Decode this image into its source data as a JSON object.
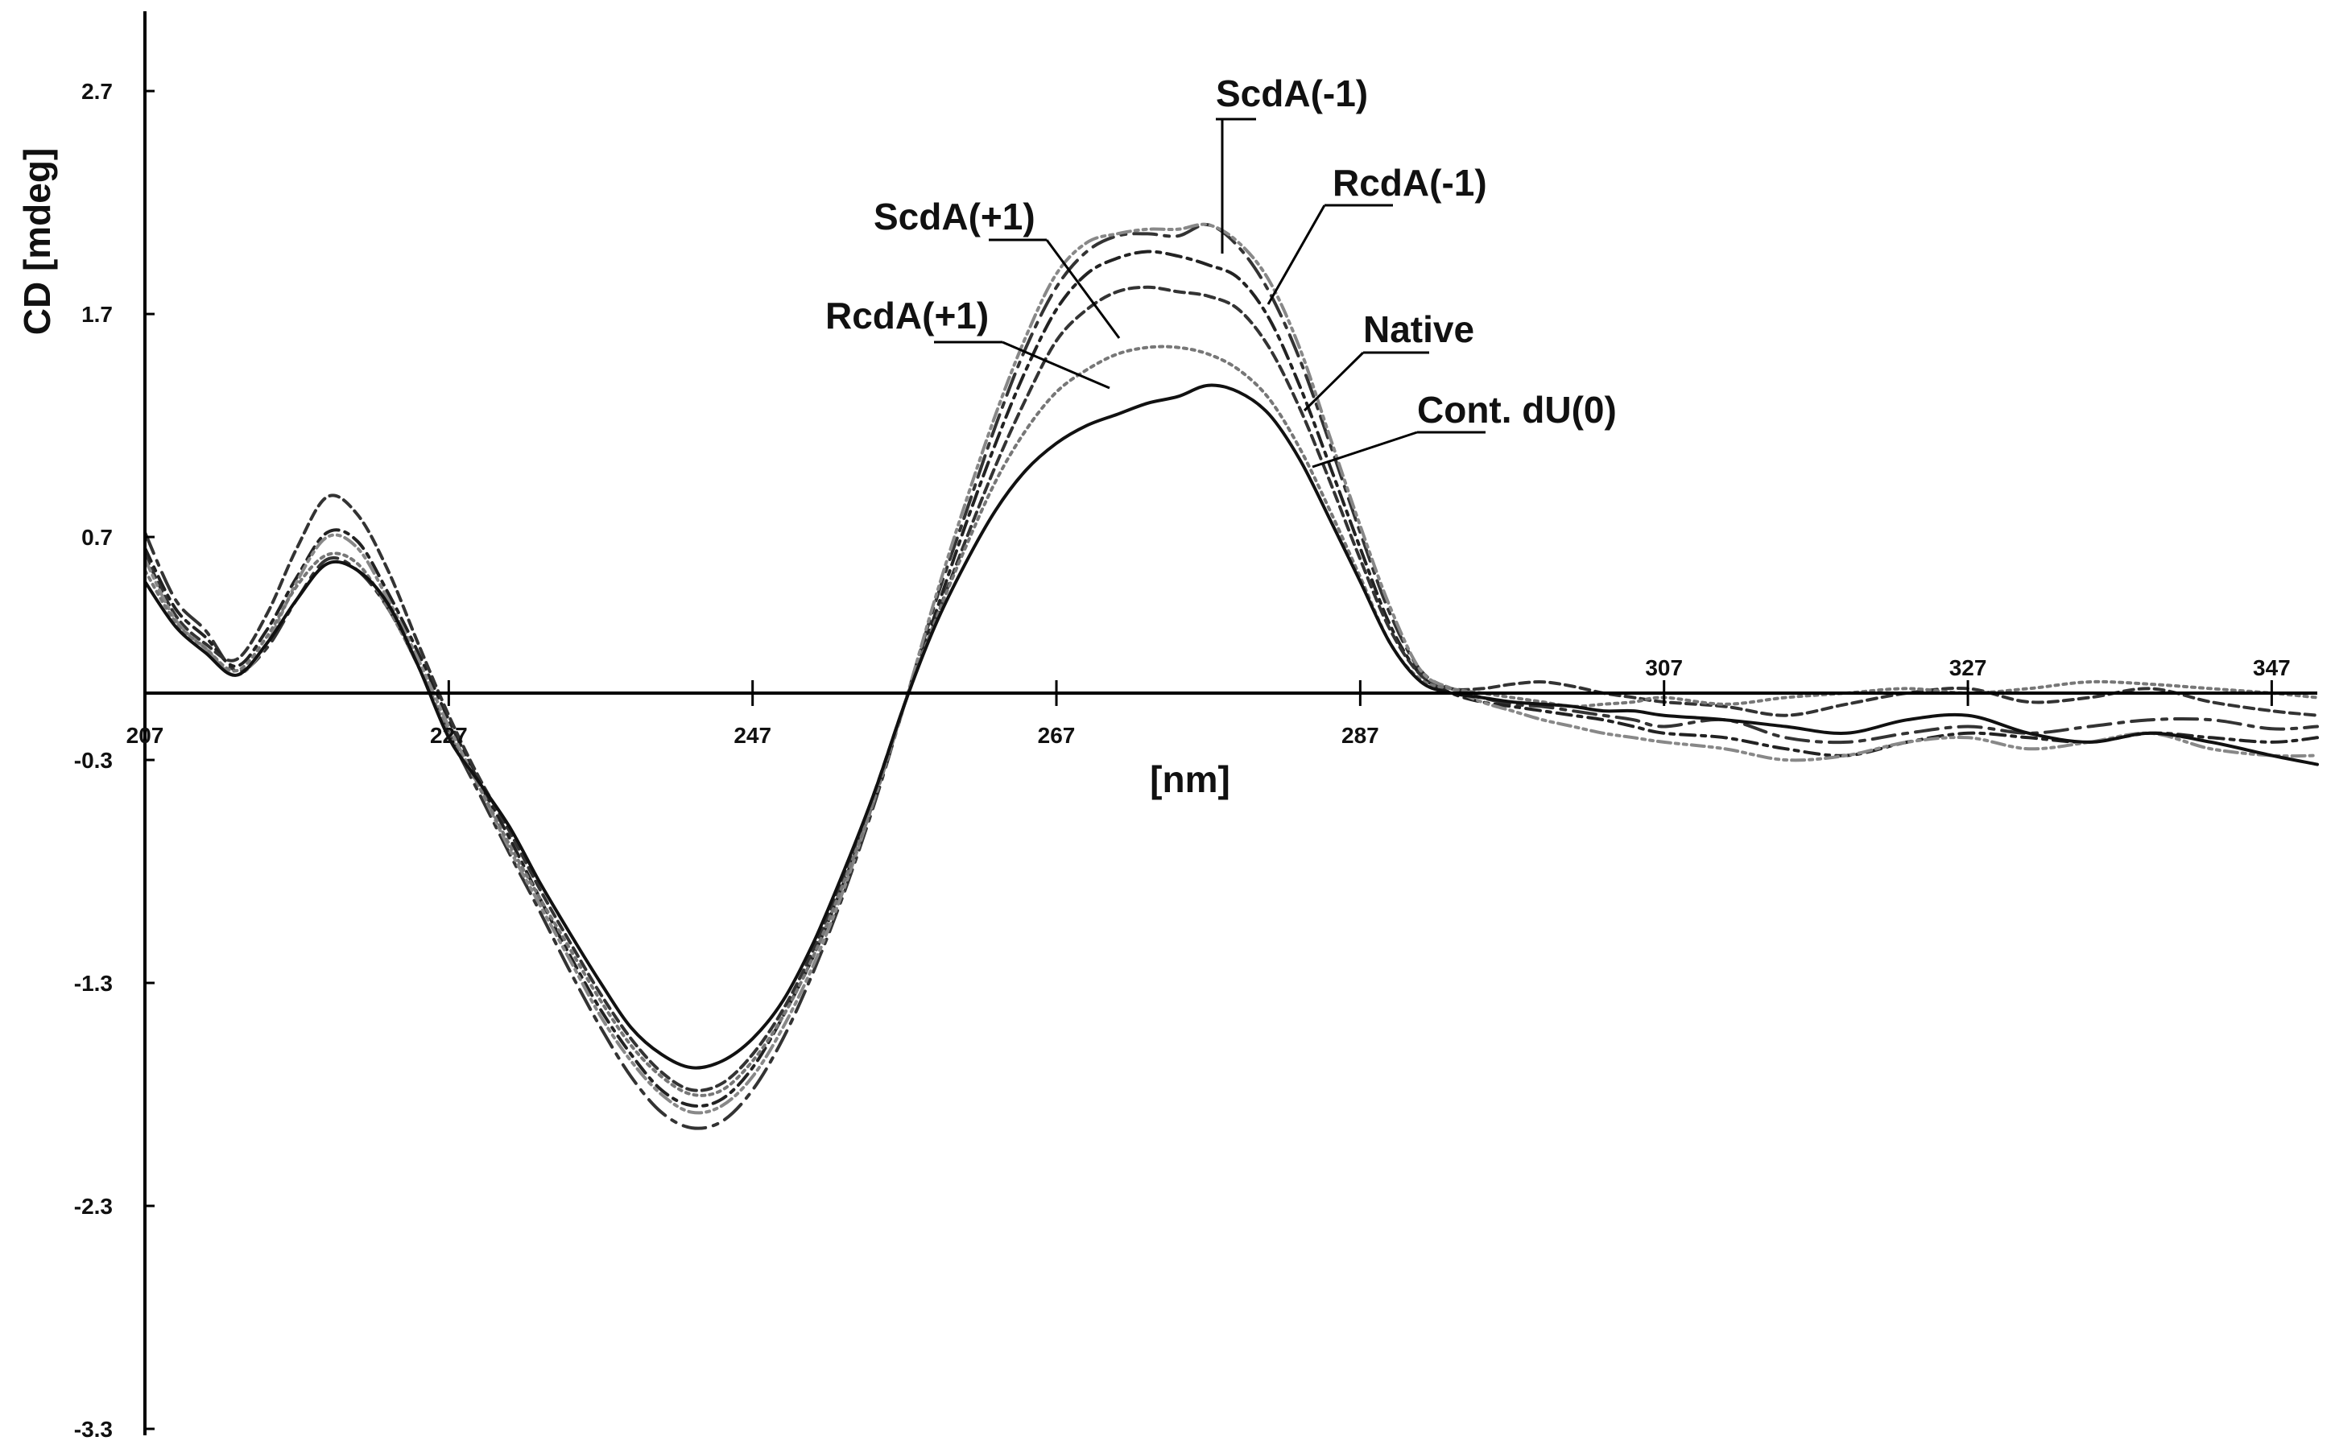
{
  "chart_data": {
    "type": "line",
    "title": "",
    "xlabel": "[nm]",
    "ylabel": "CD [mdeg]",
    "xlim": [
      207,
      350
    ],
    "ylim": [
      -3.3,
      3.0
    ],
    "x_ticks": [
      207,
      227,
      247,
      267,
      287,
      307,
      327,
      347
    ],
    "x_tick_labels": [
      "207",
      "227",
      "247",
      "267",
      "287",
      "307",
      "327",
      "347"
    ],
    "y_ticks": [
      2.7,
      1.7,
      0.7,
      -0.3,
      -1.3,
      -2.3,
      -3.3
    ],
    "y_tick_labels": [
      "2.7",
      "1.7",
      "0.7",
      "-0.3",
      "-1.3",
      "-2.3",
      "-3.3"
    ],
    "grid": false,
    "legend": "none",
    "series": [
      {
        "name": "ScdA(-1)",
        "dash": "long-dash-dot",
        "x": [
          207,
          209,
          211,
          213,
          215,
          217,
          219,
          221,
          223,
          225,
          227,
          229,
          231,
          233,
          235,
          237,
          239,
          241,
          243,
          245,
          247,
          249,
          251,
          253,
          255,
          257,
          259,
          261,
          263,
          265,
          267,
          269,
          271,
          273,
          275,
          277,
          279,
          281,
          283,
          285,
          287,
          289,
          291,
          293,
          295,
          297,
          299,
          301,
          303,
          305,
          307,
          311,
          315,
          319,
          323,
          327,
          331,
          335,
          339,
          343,
          347,
          350
        ],
        "y": [
          0.72,
          0.42,
          0.28,
          0.1,
          0.2,
          0.42,
          0.6,
          0.55,
          0.38,
          0.12,
          -0.18,
          -0.45,
          -0.72,
          -0.98,
          -1.25,
          -1.5,
          -1.72,
          -1.88,
          -1.95,
          -1.92,
          -1.78,
          -1.55,
          -1.25,
          -0.9,
          -0.5,
          -0.05,
          0.4,
          0.8,
          1.2,
          1.55,
          1.82,
          1.98,
          2.05,
          2.06,
          2.05,
          2.1,
          2.0,
          1.8,
          1.5,
          1.12,
          0.72,
          0.35,
          0.1,
          0.02,
          -0.02,
          -0.05,
          -0.06,
          -0.08,
          -0.1,
          -0.12,
          -0.15,
          -0.12,
          -0.2,
          -0.22,
          -0.18,
          -0.15,
          -0.18,
          -0.15,
          -0.12,
          -0.12,
          -0.16,
          -0.15
        ]
      },
      {
        "name": "RcdA(-1)",
        "dash": "dash-dot",
        "x": [
          207,
          209,
          211,
          213,
          215,
          217,
          219,
          221,
          223,
          225,
          227,
          229,
          231,
          233,
          235,
          237,
          239,
          241,
          243,
          245,
          247,
          249,
          251,
          253,
          255,
          257,
          259,
          261,
          263,
          265,
          267,
          269,
          271,
          273,
          275,
          277,
          279,
          281,
          283,
          285,
          287,
          289,
          291,
          293,
          295,
          297,
          299,
          301,
          303,
          305,
          307,
          311,
          315,
          319,
          323,
          327,
          331,
          335,
          339,
          343,
          347,
          350
        ],
        "y": [
          0.65,
          0.38,
          0.25,
          0.12,
          0.28,
          0.52,
          0.72,
          0.68,
          0.45,
          0.18,
          -0.12,
          -0.4,
          -0.65,
          -0.92,
          -1.18,
          -1.42,
          -1.62,
          -1.78,
          -1.85,
          -1.82,
          -1.68,
          -1.45,
          -1.18,
          -0.85,
          -0.48,
          -0.05,
          0.35,
          0.75,
          1.12,
          1.45,
          1.72,
          1.88,
          1.95,
          1.98,
          1.96,
          1.92,
          1.86,
          1.68,
          1.38,
          1.02,
          0.65,
          0.3,
          0.08,
          0.0,
          -0.04,
          -0.06,
          -0.08,
          -0.1,
          -0.12,
          -0.15,
          -0.18,
          -0.2,
          -0.25,
          -0.28,
          -0.22,
          -0.18,
          -0.2,
          -0.22,
          -0.18,
          -0.2,
          -0.22,
          -0.2
        ]
      },
      {
        "name": "ScdA(+1)",
        "dash": "short-dash",
        "x": [
          207,
          209,
          211,
          213,
          215,
          217,
          219,
          221,
          223,
          225,
          227,
          229,
          231,
          233,
          235,
          237,
          239,
          241,
          243,
          245,
          247,
          249,
          251,
          253,
          255,
          257,
          259,
          261,
          263,
          265,
          267,
          269,
          271,
          273,
          275,
          277,
          279,
          281,
          283,
          285,
          287,
          289,
          291,
          293,
          295,
          297,
          299,
          301,
          303,
          305,
          307,
          311,
          315,
          319,
          323,
          327,
          331,
          335,
          339,
          343,
          347,
          350
        ],
        "y": [
          0.62,
          0.35,
          0.22,
          0.15,
          0.35,
          0.65,
          0.88,
          0.8,
          0.55,
          0.22,
          -0.1,
          -0.38,
          -0.62,
          -0.88,
          -1.12,
          -1.35,
          -1.55,
          -1.7,
          -1.78,
          -1.75,
          -1.62,
          -1.42,
          -1.15,
          -0.82,
          -0.45,
          -0.05,
          0.32,
          0.68,
          1.02,
          1.32,
          1.58,
          1.72,
          1.8,
          1.82,
          1.8,
          1.78,
          1.72,
          1.55,
          1.28,
          0.95,
          0.6,
          0.28,
          0.08,
          0.02,
          0.02,
          0.04,
          0.05,
          0.03,
          0.0,
          -0.02,
          -0.04,
          -0.06,
          -0.1,
          -0.05,
          0.0,
          0.02,
          -0.04,
          -0.02,
          0.02,
          -0.04,
          -0.08,
          -0.1
        ]
      },
      {
        "name": "RcdA(+1)",
        "dash": "dash-dot-dot",
        "x": [
          207,
          209,
          211,
          213,
          215,
          217,
          219,
          221,
          223,
          225,
          227,
          229,
          231,
          233,
          235,
          237,
          239,
          241,
          243,
          245,
          247,
          249,
          251,
          253,
          255,
          257,
          259,
          261,
          263,
          265,
          267,
          269,
          271,
          273,
          275,
          277,
          279,
          281,
          283,
          285,
          287,
          289,
          291,
          293,
          295,
          297,
          299,
          301,
          303,
          305,
          307,
          311,
          315,
          319,
          323,
          327,
          331,
          335,
          339,
          343,
          347,
          350
        ],
        "y": [
          0.6,
          0.33,
          0.2,
          0.08,
          0.22,
          0.5,
          0.7,
          0.65,
          0.42,
          0.15,
          -0.15,
          -0.42,
          -0.7,
          -0.95,
          -1.2,
          -1.45,
          -1.65,
          -1.8,
          -1.88,
          -1.85,
          -1.72,
          -1.5,
          -1.22,
          -0.88,
          -0.48,
          -0.05,
          0.42,
          0.85,
          1.25,
          1.6,
          1.88,
          2.02,
          2.06,
          2.08,
          2.08,
          2.1,
          2.02,
          1.85,
          1.55,
          1.15,
          0.75,
          0.38,
          0.1,
          0.02,
          -0.04,
          -0.08,
          -0.12,
          -0.15,
          -0.18,
          -0.2,
          -0.22,
          -0.25,
          -0.3,
          -0.28,
          -0.22,
          -0.2,
          -0.25,
          -0.22,
          -0.18,
          -0.25,
          -0.28,
          -0.28
        ]
      },
      {
        "name": "Native",
        "dash": "dotted",
        "x": [
          207,
          209,
          211,
          213,
          215,
          217,
          219,
          221,
          223,
          225,
          227,
          229,
          231,
          233,
          235,
          237,
          239,
          241,
          243,
          245,
          247,
          249,
          251,
          253,
          255,
          257,
          259,
          261,
          263,
          265,
          267,
          269,
          271,
          273,
          275,
          277,
          279,
          281,
          283,
          285,
          287,
          289,
          291,
          293,
          295,
          297,
          299,
          301,
          303,
          305,
          307,
          311,
          315,
          319,
          323,
          327,
          331,
          335,
          339,
          343,
          347,
          350
        ],
        "y": [
          0.55,
          0.32,
          0.2,
          0.1,
          0.25,
          0.48,
          0.62,
          0.58,
          0.38,
          0.12,
          -0.18,
          -0.42,
          -0.68,
          -0.92,
          -1.15,
          -1.38,
          -1.58,
          -1.72,
          -1.8,
          -1.78,
          -1.65,
          -1.45,
          -1.18,
          -0.85,
          -0.48,
          -0.05,
          0.32,
          0.65,
          0.95,
          1.18,
          1.35,
          1.45,
          1.52,
          1.55,
          1.55,
          1.52,
          1.45,
          1.32,
          1.1,
          0.82,
          0.52,
          0.22,
          0.06,
          0.02,
          0.0,
          -0.02,
          -0.04,
          -0.06,
          -0.05,
          -0.04,
          -0.02,
          -0.05,
          -0.02,
          0.0,
          0.02,
          0.0,
          0.02,
          0.05,
          0.04,
          0.02,
          0.0,
          -0.02
        ]
      },
      {
        "name": "Cont. dU(0)",
        "dash": "solid",
        "x": [
          207,
          209,
          211,
          213,
          215,
          217,
          219,
          221,
          223,
          225,
          227,
          229,
          231,
          233,
          235,
          237,
          239,
          241,
          243,
          245,
          247,
          249,
          251,
          253,
          255,
          257,
          259,
          261,
          263,
          265,
          267,
          269,
          271,
          273,
          275,
          277,
          279,
          281,
          283,
          285,
          287,
          289,
          291,
          293,
          295,
          297,
          299,
          301,
          303,
          305,
          307,
          311,
          315,
          319,
          323,
          327,
          331,
          335,
          339,
          343,
          347,
          350
        ],
        "y": [
          0.5,
          0.3,
          0.18,
          0.08,
          0.22,
          0.42,
          0.58,
          0.55,
          0.4,
          0.12,
          -0.2,
          -0.4,
          -0.6,
          -0.85,
          -1.08,
          -1.3,
          -1.5,
          -1.62,
          -1.68,
          -1.65,
          -1.55,
          -1.38,
          -1.12,
          -0.8,
          -0.45,
          -0.05,
          0.3,
          0.58,
          0.82,
          1.0,
          1.12,
          1.2,
          1.25,
          1.3,
          1.33,
          1.38,
          1.35,
          1.25,
          1.05,
          0.78,
          0.5,
          0.22,
          0.05,
          0.0,
          -0.02,
          -0.04,
          -0.05,
          -0.06,
          -0.08,
          -0.08,
          -0.1,
          -0.12,
          -0.15,
          -0.18,
          -0.12,
          -0.1,
          -0.18,
          -0.22,
          -0.18,
          -0.22,
          -0.28,
          -0.32
        ]
      }
    ]
  }
}
